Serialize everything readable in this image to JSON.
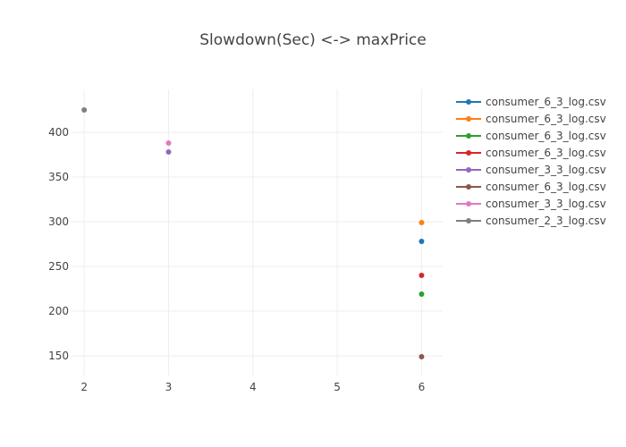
{
  "chart_data": {
    "type": "scatter",
    "title": "Slowdown(Sec) <-> maxPrice",
    "xlabel": "",
    "ylabel": "",
    "xlim": [
      1.85,
      6.25
    ],
    "ylim": [
      128,
      448
    ],
    "xticks": [
      2,
      3,
      4,
      5,
      6
    ],
    "yticks": [
      150,
      200,
      250,
      300,
      350,
      400
    ],
    "grid": true,
    "legend_position": "right",
    "series": [
      {
        "name": "consumer_6_3_log.csv",
        "color": "#1f77b4",
        "points": [
          [
            6,
            278
          ]
        ]
      },
      {
        "name": "consumer_6_3_log.csv",
        "color": "#ff7f0e",
        "points": [
          [
            6,
            299
          ]
        ]
      },
      {
        "name": "consumer_6_3_log.csv",
        "color": "#2ca02c",
        "points": [
          [
            6,
            219
          ]
        ]
      },
      {
        "name": "consumer_6_3_log.csv",
        "color": "#d62728",
        "points": [
          [
            6,
            240
          ]
        ]
      },
      {
        "name": "consumer_3_3_log.csv",
        "color": "#9467bd",
        "points": [
          [
            3,
            378
          ]
        ]
      },
      {
        "name": "consumer_6_3_log.csv",
        "color": "#8c564b",
        "points": [
          [
            6,
            149
          ]
        ]
      },
      {
        "name": "consumer_3_3_log.csv",
        "color": "#e377c2",
        "points": [
          [
            3,
            388
          ]
        ]
      },
      {
        "name": "consumer_2_3_log.csv",
        "color": "#7f7f7f",
        "points": [
          [
            2,
            425
          ]
        ]
      }
    ]
  }
}
